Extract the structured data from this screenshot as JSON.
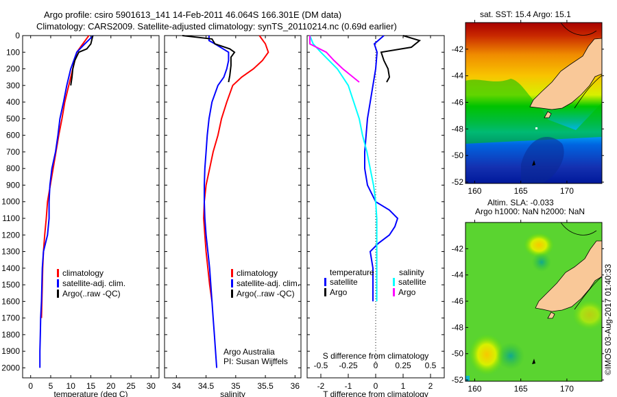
{
  "header": {
    "line1": "Argo profile: csiro 5901613_141 14-Feb-2011 46.064S 166.301E (DM data)",
    "line2": "Climatology: CARS2009. Satellite-adjusted climatology: synTS_20110214.nc (0.69d earlier)"
  },
  "colors": {
    "climatology": "#ff0000",
    "satellite": "#0000ff",
    "argo": "#000000",
    "sal_satellite": "#00ffff",
    "sal_argo": "#ff00ff",
    "land": "#f9c898"
  },
  "chart_data": [
    {
      "type": "line",
      "name": "temperature-profile",
      "xlabel": "temperature (deg C)",
      "ylabel": "",
      "xlim": [
        -2,
        32
      ],
      "ylim": [
        2060,
        0
      ],
      "xticks": [
        "0",
        "5",
        "10",
        "15",
        "20",
        "25",
        "30"
      ],
      "yticks": [
        "0",
        "100",
        "200",
        "300",
        "400",
        "500",
        "600",
        "700",
        "800",
        "900",
        "1000",
        "1100",
        "1200",
        "1300",
        "1400",
        "1500",
        "1600",
        "1700",
        "1800",
        "1900",
        "2000"
      ],
      "legend": [
        "climatology",
        "satellite-adj. clim.",
        "Argo(..raw -QC)"
      ],
      "legend_position": "center",
      "series": [
        {
          "name": "climatology",
          "color": "#ff0000",
          "depth": [
            0,
            50,
            100,
            200,
            300,
            400,
            500,
            600,
            700,
            800,
            900,
            1000,
            1100,
            1200,
            1300,
            1400,
            1500,
            1600,
            1700
          ],
          "values": [
            14.5,
            13,
            11.5,
            10.5,
            9.5,
            8.5,
            7.8,
            7,
            6.3,
            5.6,
            4.9,
            4.2,
            3.9,
            3.5,
            3.2,
            3.0,
            2.9,
            2.8,
            2.7
          ]
        },
        {
          "name": "satellite-adj. clim.",
          "color": "#0000ff",
          "depth": [
            0,
            50,
            100,
            200,
            300,
            400,
            500,
            600,
            700,
            800,
            900,
            1000,
            1100,
            1200,
            1300,
            1400,
            1500,
            1600,
            1700,
            1800,
            1900,
            2000
          ],
          "values": [
            15.6,
            13.5,
            11.5,
            10,
            9,
            8.2,
            7.3,
            6.8,
            6.2,
            5.3,
            4.8,
            4.6,
            4.6,
            4.2,
            3.2,
            2.9,
            2.8,
            2.7,
            2.5,
            2.4,
            2.3,
            2.3
          ]
        },
        {
          "name": "Argo(..raw -QC)",
          "color": "#000000",
          "depth": [
            0,
            50,
            80,
            100,
            150,
            200,
            250,
            300
          ],
          "values": [
            15.5,
            15,
            14,
            12,
            11,
            10.5,
            10.3,
            10
          ]
        }
      ]
    },
    {
      "type": "line",
      "name": "salinity-profile",
      "xlabel": "salinity",
      "xlim": [
        33.8,
        36.1
      ],
      "ylim": [
        2060,
        0
      ],
      "xticks": [
        "34",
        "34.5",
        "35",
        "35.5",
        "36"
      ],
      "legend": [
        "climatology",
        "satellite-adj. clim.",
        "Argo(..raw -QC)"
      ],
      "annotation": [
        "Argo Australia",
        "PI: Susan Wijffels"
      ],
      "series": [
        {
          "name": "climatology",
          "color": "#ff0000",
          "depth": [
            0,
            50,
            100,
            150,
            200,
            250,
            300,
            400,
            500,
            600,
            700,
            800,
            900,
            1000,
            1100,
            1200,
            1300,
            1400,
            1500,
            1600
          ],
          "values": [
            35.4,
            35.5,
            35.55,
            35.45,
            35.3,
            35.1,
            34.95,
            34.85,
            34.76,
            34.7,
            34.62,
            34.56,
            34.5,
            34.47,
            34.46,
            34.48,
            34.5,
            34.53,
            34.56,
            34.6
          ]
        },
        {
          "name": "satellite-adj. clim.",
          "color": "#0000ff",
          "depth": [
            0,
            30,
            50,
            100,
            150,
            200,
            250,
            300,
            400,
            500,
            600,
            700,
            800,
            900,
            1000,
            1100,
            1200,
            1300,
            1400,
            1500,
            1600,
            1700,
            1800,
            1900,
            2000
          ],
          "values": [
            34.55,
            34.55,
            34.65,
            34.88,
            34.88,
            34.85,
            34.8,
            34.7,
            34.6,
            34.55,
            34.52,
            34.5,
            34.48,
            34.47,
            34.47,
            34.48,
            34.5,
            34.53,
            34.56,
            34.58,
            34.6,
            34.62,
            34.64,
            34.66,
            34.68
          ]
        },
        {
          "name": "Argo(..raw -QC)",
          "color": "#000000",
          "depth": [
            0,
            20,
            50,
            80,
            100,
            130,
            180,
            240,
            280
          ],
          "values": [
            34.1,
            34.6,
            34.65,
            34.9,
            34.98,
            34.92,
            34.92,
            34.9,
            34.88
          ]
        }
      ]
    },
    {
      "type": "line",
      "name": "difference-profile",
      "xlabel": "T difference from climatology",
      "xlabel_top": "S difference from climatology",
      "xlim": [
        -2.5,
        2.5
      ],
      "ylim": [
        2060,
        0
      ],
      "xticks": [
        "-2",
        "-1",
        "0",
        "1",
        "2"
      ],
      "xticks_top": [
        "-0.5",
        "-0.25",
        "0",
        "0.25",
        "0.5"
      ],
      "legend_temperature": {
        "title": "temperature",
        "items": [
          "satellite",
          "Argo"
        ]
      },
      "legend_salinity": {
        "title": "salinity",
        "items": [
          "satellite",
          "Argo"
        ]
      },
      "series": [
        {
          "name": "temperature satellite",
          "color": "#0000ff",
          "depth": [
            0,
            50,
            100,
            200,
            300,
            400,
            500,
            600,
            700,
            800,
            900,
            1000,
            1050,
            1100,
            1150,
            1200,
            1250,
            1300,
            1400,
            1500,
            1600
          ],
          "values": [
            0.3,
            -0.05,
            0.05,
            0,
            -0.1,
            -0.2,
            -0.3,
            -0.35,
            -0.4,
            -0.4,
            -0.3,
            0,
            0.5,
            0.8,
            0.7,
            0.5,
            0.1,
            -0.2,
            -0.1,
            -0.1,
            -0.1
          ]
        },
        {
          "name": "temperature Argo",
          "color": "#000000",
          "depth": [
            0,
            30,
            70,
            100,
            150,
            200,
            250,
            280
          ],
          "values": [
            1,
            1.6,
            1.3,
            0.2,
            0.3,
            0.45,
            0.5,
            0.4
          ]
        },
        {
          "name": "salinity satellite",
          "color": "#00ffff",
          "depth": [
            0,
            50,
            100,
            200,
            300,
            400,
            500,
            600,
            700,
            800,
            900,
            1000,
            1100,
            1200,
            1300,
            1400,
            1500,
            1600
          ],
          "values": [
            -0.6,
            -0.57,
            -0.5,
            -0.35,
            -0.25,
            -0.2,
            -0.15,
            -0.12,
            -0.08,
            -0.05,
            -0.02,
            0,
            0.01,
            0.01,
            0.01,
            0.01,
            0.01,
            0.01
          ]
        },
        {
          "name": "salinity Argo",
          "color": "#ff00ff",
          "depth": [
            0,
            50,
            100,
            150,
            200,
            280
          ],
          "values": [
            -0.6,
            -0.6,
            -0.45,
            -0.38,
            -0.3,
            -0.15
          ]
        }
      ]
    },
    {
      "type": "heatmap",
      "name": "sst-map",
      "title": "sat. SST: 15.4 Argo: 15.1",
      "xlim": [
        159,
        173.8
      ],
      "ylim": [
        -52.1,
        -40
      ],
      "xticks": [
        "160",
        "165",
        "170"
      ],
      "yticks": [
        "-42",
        "-44",
        "-46",
        "-48",
        "-50",
        "-52"
      ]
    },
    {
      "type": "heatmap",
      "name": "sla-map",
      "title_line1": "Altim. SLA: -0.033",
      "title_line2": "Argo h1000: NaN h2000: NaN",
      "xlim": [
        159,
        173.8
      ],
      "ylim": [
        -52.1,
        -40
      ],
      "xticks": [
        "160",
        "165",
        "170"
      ],
      "yticks": [
        "-42",
        "-44",
        "-46",
        "-48",
        "-50",
        "-52"
      ]
    }
  ],
  "footer": {
    "copyright": "©IMOS 03-Aug-2017 01:40:33"
  }
}
